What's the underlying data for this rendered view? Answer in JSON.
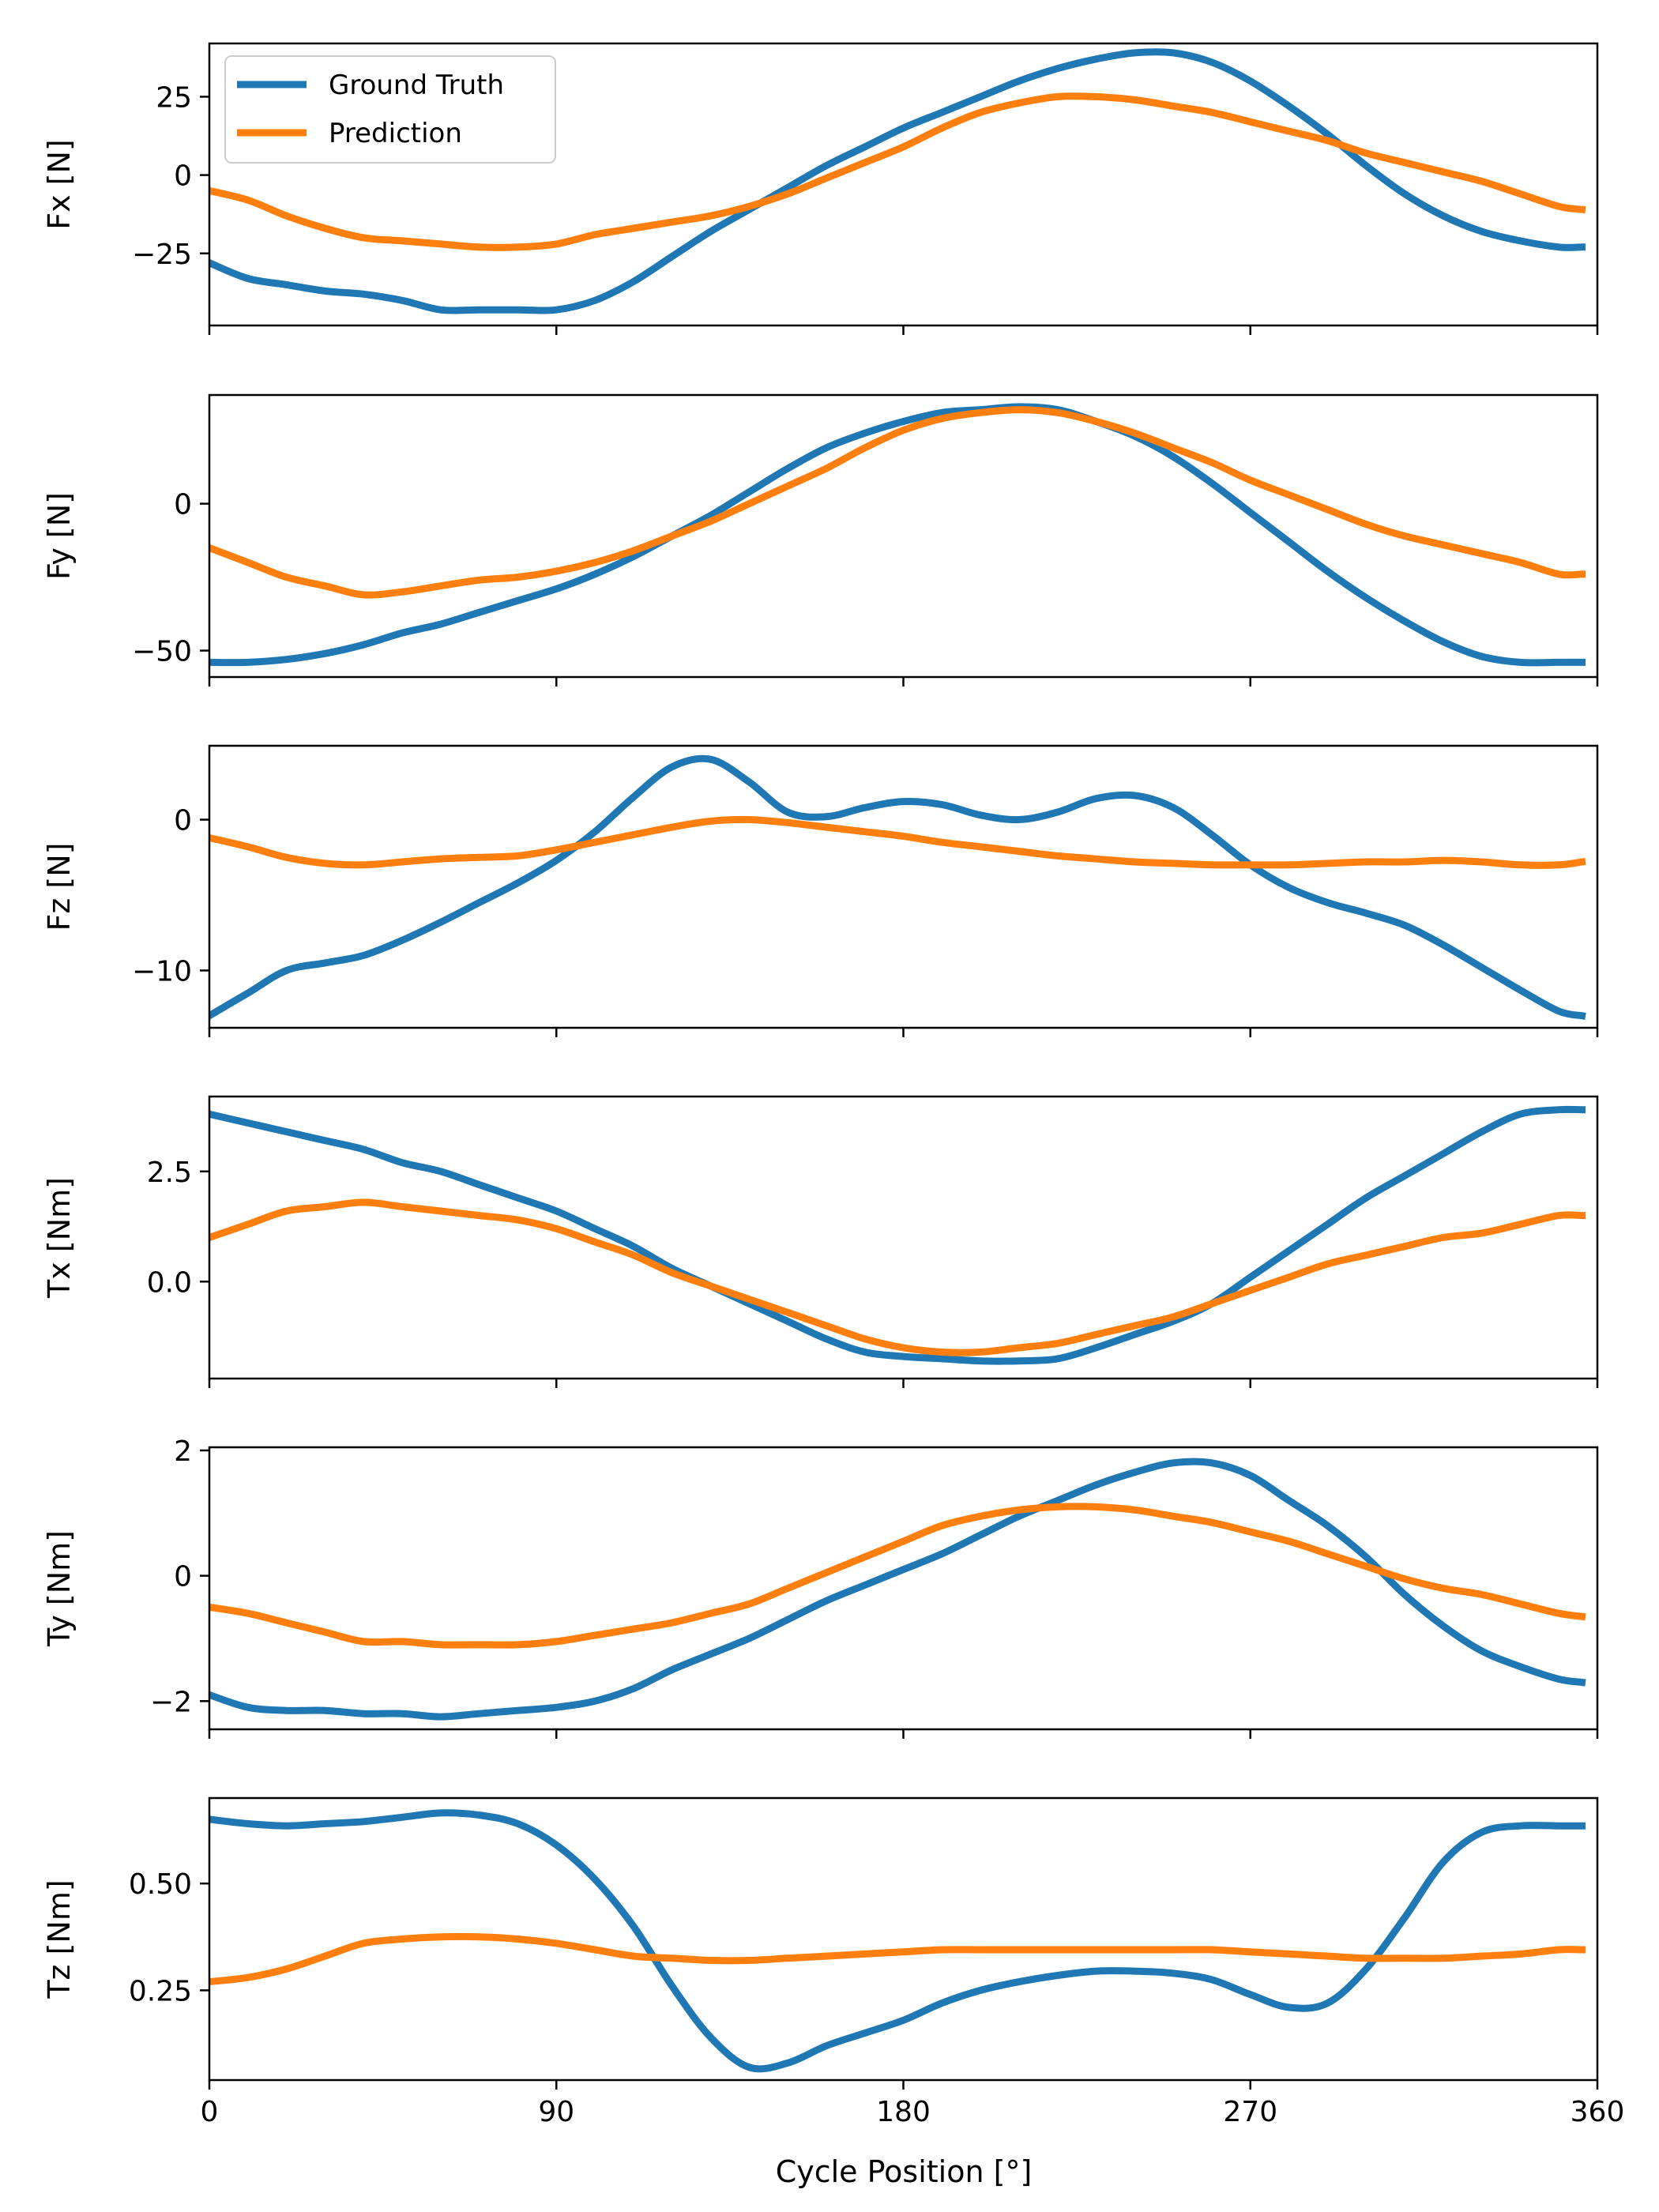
{
  "chart_data": {
    "type": "line",
    "layout": "6 stacked subplots sharing x axis",
    "xlabel": "Cycle Position [°]",
    "xlim": [
      0,
      360
    ],
    "xticks": [
      0,
      90,
      180,
      270,
      360
    ],
    "legend": {
      "placement": "top-left of first subplot",
      "entries": [
        "Ground Truth",
        "Prediction"
      ]
    },
    "colors": {
      "Ground Truth": "#1f77b4",
      "Prediction": "#ff7f0e"
    },
    "x": [
      0,
      10,
      20,
      30,
      40,
      50,
      60,
      70,
      80,
      90,
      100,
      110,
      120,
      130,
      140,
      150,
      160,
      170,
      180,
      190,
      200,
      210,
      220,
      230,
      240,
      250,
      260,
      270,
      280,
      290,
      300,
      310,
      320,
      330,
      340,
      350,
      356
    ],
    "panels": [
      {
        "ylabel": "Fx [N]",
        "ylim": [
          -48,
          42
        ],
        "yticks": [
          -25,
          0,
          25
        ],
        "series": [
          {
            "name": "Ground Truth",
            "values": [
              -28,
              -33,
              -35,
              -37,
              -38,
              -40,
              -43,
              -43,
              -43,
              -43,
              -40,
              -34,
              -26,
              -18,
              -11,
              -4,
              3,
              9,
              15,
              20,
              25,
              30,
              34,
              37,
              39,
              39,
              36,
              30,
              22,
              13,
              3,
              -6,
              -13,
              -18,
              -21,
              -23,
              -23
            ]
          },
          {
            "name": "Prediction",
            "values": [
              -5,
              -8,
              -13,
              -17,
              -20,
              -21,
              -22,
              -23,
              -23,
              -22,
              -19,
              -17,
              -15,
              -13,
              -10,
              -6,
              -1,
              4,
              9,
              15,
              20,
              23,
              25,
              25,
              24,
              22,
              20,
              17,
              14,
              11,
              7,
              4,
              1,
              -2,
              -6,
              -10,
              -11
            ]
          }
        ]
      },
      {
        "ylabel": "Fy [N]",
        "ylim": [
          -59,
          37
        ],
        "yticks": [
          -50,
          0
        ],
        "series": [
          {
            "name": "Ground Truth",
            "values": [
              -54,
              -54,
              -53,
              -51,
              -48,
              -44,
              -41,
              -37,
              -33,
              -29,
              -24,
              -18,
              -11,
              -4,
              4,
              12,
              19,
              24,
              28,
              31,
              32,
              33,
              32,
              28,
              23,
              16,
              7,
              -3,
              -13,
              -23,
              -32,
              -40,
              -47,
              -52,
              -54,
              -54,
              -54
            ]
          },
          {
            "name": "Prediction",
            "values": [
              -15,
              -20,
              -25,
              -28,
              -31,
              -30,
              -28,
              -26,
              -25,
              -23,
              -20,
              -16,
              -11,
              -6,
              0,
              6,
              12,
              19,
              25,
              29,
              31,
              32,
              31,
              28,
              24,
              19,
              14,
              8,
              3,
              -2,
              -7,
              -11,
              -14,
              -17,
              -20,
              -24,
              -24
            ]
          }
        ]
      },
      {
        "ylabel": "Fz [N]",
        "ylim": [
          -13.8,
          4.9
        ],
        "yticks": [
          -10,
          0
        ],
        "series": [
          {
            "name": "Ground Truth",
            "values": [
              -13,
              -11.5,
              -10,
              -9.5,
              -9.0,
              -8.0,
              -6.8,
              -5.5,
              -4.2,
              -2.7,
              -0.8,
              1.5,
              3.5,
              4.0,
              2.5,
              0.5,
              0.2,
              0.8,
              1.2,
              1.0,
              0.3,
              0.0,
              0.5,
              1.4,
              1.6,
              0.8,
              -1.0,
              -3.0,
              -4.5,
              -5.5,
              -6.2,
              -7.0,
              -8.3,
              -9.8,
              -11.3,
              -12.7,
              -13.0
            ]
          },
          {
            "name": "Prediction",
            "values": [
              -1.2,
              -1.8,
              -2.5,
              -2.9,
              -3.0,
              -2.8,
              -2.6,
              -2.5,
              -2.4,
              -2.0,
              -1.5,
              -1.0,
              -0.5,
              -0.1,
              0.0,
              -0.2,
              -0.5,
              -0.8,
              -1.1,
              -1.5,
              -1.8,
              -2.1,
              -2.4,
              -2.6,
              -2.8,
              -2.9,
              -3.0,
              -3.0,
              -3.0,
              -2.9,
              -2.8,
              -2.8,
              -2.7,
              -2.8,
              -3.0,
              -3.0,
              -2.8
            ]
          }
        ]
      },
      {
        "ylabel": "Tx [Nm]",
        "ylim": [
          -2.2,
          4.2
        ],
        "yticks": [
          0.0,
          2.5
        ],
        "series": [
          {
            "name": "Ground Truth",
            "values": [
              3.8,
              3.6,
              3.4,
              3.2,
              3.0,
              2.7,
              2.5,
              2.2,
              1.9,
              1.6,
              1.2,
              0.8,
              0.3,
              -0.1,
              -0.5,
              -0.9,
              -1.3,
              -1.6,
              -1.7,
              -1.75,
              -1.8,
              -1.8,
              -1.75,
              -1.5,
              -1.2,
              -0.9,
              -0.5,
              0.1,
              0.7,
              1.3,
              1.9,
              2.4,
              2.9,
              3.4,
              3.8,
              3.9,
              3.9
            ]
          },
          {
            "name": "Prediction",
            "values": [
              1.0,
              1.3,
              1.6,
              1.7,
              1.8,
              1.7,
              1.6,
              1.5,
              1.4,
              1.2,
              0.9,
              0.6,
              0.2,
              -0.1,
              -0.4,
              -0.7,
              -1.0,
              -1.3,
              -1.5,
              -1.6,
              -1.6,
              -1.5,
              -1.4,
              -1.2,
              -1.0,
              -0.8,
              -0.5,
              -0.2,
              0.1,
              0.4,
              0.6,
              0.8,
              1.0,
              1.1,
              1.3,
              1.5,
              1.5
            ]
          }
        ]
      },
      {
        "ylabel": "Ty [Nm]",
        "ylim": [
          -2.45,
          2.05
        ],
        "yticks": [
          -2,
          0,
          2
        ],
        "series": [
          {
            "name": "Ground Truth",
            "values": [
              -1.9,
              -2.1,
              -2.15,
              -2.15,
              -2.2,
              -2.2,
              -2.25,
              -2.2,
              -2.15,
              -2.1,
              -2.0,
              -1.8,
              -1.5,
              -1.25,
              -1.0,
              -0.7,
              -0.4,
              -0.15,
              0.1,
              0.35,
              0.65,
              0.95,
              1.2,
              1.45,
              1.65,
              1.8,
              1.8,
              1.6,
              1.2,
              0.8,
              0.3,
              -0.3,
              -0.8,
              -1.2,
              -1.45,
              -1.65,
              -1.7
            ]
          },
          {
            "name": "Prediction",
            "values": [
              -0.5,
              -0.6,
              -0.75,
              -0.9,
              -1.05,
              -1.05,
              -1.1,
              -1.1,
              -1.1,
              -1.05,
              -0.95,
              -0.85,
              -0.75,
              -0.6,
              -0.45,
              -0.2,
              0.05,
              0.3,
              0.55,
              0.8,
              0.95,
              1.05,
              1.1,
              1.1,
              1.05,
              0.95,
              0.85,
              0.7,
              0.55,
              0.35,
              0.15,
              -0.05,
              -0.2,
              -0.3,
              -0.45,
              -0.6,
              -0.65
            ]
          }
        ]
      },
      {
        "ylabel": "Tz [Nm]",
        "ylim": [
          0.04,
          0.7
        ],
        "yticks": [
          0.25,
          0.5
        ],
        "series": [
          {
            "name": "Ground Truth",
            "values": [
              0.65,
              0.64,
              0.635,
              0.64,
              0.645,
              0.655,
              0.665,
              0.66,
              0.64,
              0.59,
              0.51,
              0.4,
              0.26,
              0.14,
              0.07,
              0.08,
              0.12,
              0.15,
              0.18,
              0.22,
              0.25,
              0.27,
              0.285,
              0.295,
              0.295,
              0.29,
              0.275,
              0.24,
              0.21,
              0.22,
              0.3,
              0.42,
              0.55,
              0.62,
              0.635,
              0.635,
              0.635
            ]
          },
          {
            "name": "Prediction",
            "values": [
              0.27,
              0.28,
              0.3,
              0.33,
              0.36,
              0.37,
              0.375,
              0.375,
              0.37,
              0.36,
              0.345,
              0.33,
              0.325,
              0.32,
              0.32,
              0.325,
              0.33,
              0.335,
              0.34,
              0.345,
              0.345,
              0.345,
              0.345,
              0.345,
              0.345,
              0.345,
              0.345,
              0.34,
              0.335,
              0.33,
              0.325,
              0.325,
              0.325,
              0.33,
              0.335,
              0.345,
              0.345
            ]
          }
        ]
      }
    ]
  }
}
